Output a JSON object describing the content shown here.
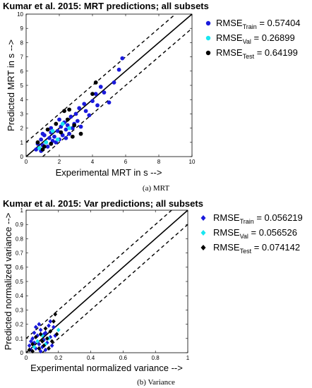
{
  "chart_data": [
    {
      "type": "scatter",
      "title": "Kumar et al. 2015: MRT predictions; all subsets",
      "xlabel": "Experimental MRT in s -->",
      "ylabel": "Predicted MRT in s -->",
      "xlim": [
        0,
        10
      ],
      "ylim": [
        0,
        10
      ],
      "xticks": [
        "0",
        "2",
        "4",
        "6",
        "8",
        "10"
      ],
      "yticks": [
        "0",
        "1",
        "2",
        "3",
        "4",
        "5",
        "6",
        "7",
        "8",
        "9",
        "10"
      ],
      "marker": "circle",
      "reference_lines": [
        "y = x (solid)",
        "upper bound (dashed)",
        "lower bound (dashed)"
      ],
      "caption_label": "(a)",
      "caption_text": "MRT",
      "series": [
        {
          "name": "Train",
          "legend_main": "RMSE",
          "legend_sub": "Train",
          "legend_value": " = 0.57404",
          "color": "#1a1adc",
          "points": [
            [
              0.6,
              0.5
            ],
            [
              0.7,
              0.9
            ],
            [
              0.8,
              0.6
            ],
            [
              0.9,
              1.2
            ],
            [
              1.0,
              0.8
            ],
            [
              1.1,
              1.5
            ],
            [
              1.2,
              1.0
            ],
            [
              1.3,
              0.7
            ],
            [
              1.4,
              1.3
            ],
            [
              1.5,
              1.7
            ],
            [
              1.6,
              1.1
            ],
            [
              1.7,
              1.4
            ],
            [
              1.8,
              1.0
            ],
            [
              1.9,
              1.8
            ],
            [
              2.0,
              1.2
            ],
            [
              2.1,
              2.1
            ],
            [
              2.2,
              1.5
            ],
            [
              2.3,
              2.4
            ],
            [
              2.4,
              1.9
            ],
            [
              2.5,
              2.2
            ],
            [
              2.6,
              1.6
            ],
            [
              2.7,
              2.8
            ],
            [
              2.8,
              2.0
            ],
            [
              2.9,
              2.3
            ],
            [
              3.0,
              3.0
            ],
            [
              3.1,
              2.5
            ],
            [
              3.2,
              3.4
            ],
            [
              3.3,
              2.1
            ],
            [
              3.5,
              3.7
            ],
            [
              3.6,
              3.2
            ],
            [
              3.8,
              2.9
            ],
            [
              4.0,
              3.9
            ],
            [
              4.2,
              4.4
            ],
            [
              4.3,
              3.6
            ],
            [
              4.5,
              4.9
            ],
            [
              4.7,
              4.5
            ],
            [
              5.0,
              3.8
            ],
            [
              5.3,
              5.2
            ],
            [
              5.6,
              6.1
            ],
            [
              5.8,
              6.9
            ],
            [
              1.0,
              1.6
            ],
            [
              1.5,
              2.0
            ],
            [
              2.0,
              2.6
            ],
            [
              0.9,
              0.4
            ],
            [
              2.4,
              1.3
            ]
          ]
        },
        {
          "name": "Val",
          "legend_main": "RMSE",
          "legend_sub": "Val",
          "legend_value": " = 0.26899",
          "color": "#19e6f0",
          "points": [
            [
              0.8,
              0.6
            ],
            [
              1.2,
              1.0
            ],
            [
              1.6,
              1.8
            ],
            [
              2.2,
              2.3
            ],
            [
              2.6,
              2.0
            ],
            [
              1.9,
              1.2
            ]
          ]
        },
        {
          "name": "Test",
          "legend_main": "RMSE",
          "legend_sub": "Test",
          "legend_value": " = 0.64199",
          "color": "#000000",
          "points": [
            [
              0.7,
              1.0
            ],
            [
              1.0,
              0.5
            ],
            [
              1.3,
              1.9
            ],
            [
              1.5,
              0.9
            ],
            [
              1.8,
              2.3
            ],
            [
              2.1,
              1.7
            ],
            [
              2.3,
              3.2
            ],
            [
              2.5,
              2.6
            ],
            [
              2.6,
              3.3
            ],
            [
              2.9,
              2.2
            ],
            [
              3.3,
              1.6
            ],
            [
              4.0,
              4.4
            ],
            [
              4.2,
              5.2
            ],
            [
              1.1,
              0.7
            ],
            [
              2.8,
              1.4
            ]
          ]
        }
      ]
    },
    {
      "type": "scatter",
      "title": "Kumar et al. 2015: Var predictions; all subsets",
      "xlabel": "Experimental normalized variance -->",
      "ylabel": "Predicted normalized variance -->",
      "xlim": [
        0,
        1
      ],
      "ylim": [
        0,
        1
      ],
      "xticks": [
        "0",
        "0.2",
        "0.4",
        "0.6",
        "0.8",
        "1"
      ],
      "yticks": [
        "0",
        "0.1",
        "0.2",
        "0.3",
        "0.4",
        "0.5",
        "0.6",
        "0.7",
        "0.8",
        "0.9",
        "1"
      ],
      "marker": "diamond",
      "reference_lines": [
        "y = x (solid)",
        "upper bound (dashed)",
        "lower bound (dashed)"
      ],
      "caption_label": "(b)",
      "caption_text": "Variance",
      "series": [
        {
          "name": "Train",
          "legend_main": "RMSE",
          "legend_sub": "Train",
          "legend_value": " = 0.056219",
          "color": "#1a1adc",
          "points": [
            [
              0.02,
              0.05
            ],
            [
              0.03,
              0.02
            ],
            [
              0.04,
              0.1
            ],
            [
              0.05,
              0.07
            ],
            [
              0.06,
              0.03
            ],
            [
              0.07,
              0.12
            ],
            [
              0.08,
              0.06
            ],
            [
              0.09,
              0.16
            ],
            [
              0.1,
              0.04
            ],
            [
              0.11,
              0.09
            ],
            [
              0.12,
              0.14
            ],
            [
              0.13,
              0.07
            ],
            [
              0.14,
              0.19
            ],
            [
              0.15,
              0.11
            ],
            [
              0.16,
              0.05
            ],
            [
              0.17,
              0.18
            ],
            [
              0.18,
              0.12
            ],
            [
              0.08,
              0.2
            ],
            [
              0.05,
              0.14
            ],
            [
              0.12,
              0.02
            ],
            [
              0.03,
              0.08
            ],
            [
              0.15,
              0.22
            ],
            [
              0.09,
              0.01
            ],
            [
              0.06,
              0.18
            ],
            [
              0.11,
              0.13
            ]
          ]
        },
        {
          "name": "Val",
          "legend_main": "RMSE",
          "legend_sub": "Val",
          "legend_value": " = 0.056526",
          "color": "#19e6f0",
          "points": [
            [
              0.07,
              0.08
            ],
            [
              0.1,
              0.12
            ],
            [
              0.12,
              0.06
            ],
            [
              0.14,
              0.1
            ],
            [
              0.2,
              0.16
            ],
            [
              0.05,
              0.04
            ]
          ]
        },
        {
          "name": "Test",
          "legend_main": "RMSE",
          "legend_sub": "Test",
          "legend_value": " = 0.074142",
          "color": "#000000",
          "points": [
            [
              0.02,
              0.02
            ],
            [
              0.04,
              0.06
            ],
            [
              0.06,
              0.11
            ],
            [
              0.08,
              0.03
            ],
            [
              0.09,
              0.13
            ],
            [
              0.1,
              0.08
            ],
            [
              0.11,
              0.05
            ],
            [
              0.12,
              0.17
            ],
            [
              0.13,
              0.1
            ],
            [
              0.15,
              0.15
            ],
            [
              0.16,
              0.08
            ],
            [
              0.17,
              0.22
            ],
            [
              0.18,
              0.27
            ],
            [
              0.19,
              0.13
            ],
            [
              0.14,
              0.03
            ],
            [
              0.04,
              0.01
            ]
          ]
        }
      ]
    }
  ]
}
